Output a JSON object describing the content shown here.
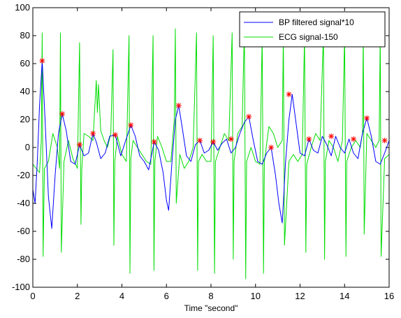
{
  "chart_data": {
    "type": "line",
    "title": "",
    "xlabel": "Time \"second\"",
    "ylabel": "",
    "xlim": [
      0,
      16
    ],
    "ylim": [
      -100,
      100
    ],
    "xticks": [
      0,
      2,
      4,
      6,
      8,
      10,
      12,
      14,
      16
    ],
    "yticks": [
      -100,
      -80,
      -60,
      -40,
      -20,
      0,
      20,
      40,
      60,
      80,
      100
    ],
    "grid": false,
    "legend_position": "top-right",
    "series": [
      {
        "name": "BP filtered signal*10",
        "color": "#0000ff",
        "x": [
          0,
          0.1,
          0.2,
          0.3,
          0.42,
          0.55,
          0.7,
          0.85,
          1.0,
          1.15,
          1.32,
          1.5,
          1.7,
          1.9,
          2.1,
          2.3,
          2.5,
          2.7,
          2.85,
          3.05,
          3.25,
          3.45,
          3.7,
          3.95,
          4.15,
          4.4,
          4.6,
          4.8,
          5.0,
          5.2,
          5.45,
          5.65,
          5.85,
          6.0,
          6.1,
          6.25,
          6.4,
          6.55,
          6.7,
          6.9,
          7.1,
          7.3,
          7.5,
          7.7,
          7.9,
          8.1,
          8.3,
          8.5,
          8.7,
          8.9,
          9.1,
          9.3,
          9.5,
          9.7,
          9.9,
          10.1,
          10.3,
          10.5,
          10.7,
          10.9,
          11.05,
          11.2,
          11.35,
          11.5,
          11.65,
          11.8,
          12.0,
          12.2,
          12.4,
          12.6,
          12.8,
          13.0,
          13.2,
          13.4,
          13.6,
          13.8,
          14.0,
          14.2,
          14.4,
          14.6,
          14.8,
          15.0,
          15.2,
          15.4,
          15.6,
          15.8,
          16.0
        ],
        "values": [
          -30,
          -40,
          -10,
          30,
          62,
          20,
          -35,
          -58,
          -20,
          10,
          24,
          12,
          -10,
          -12,
          2,
          -6,
          -4,
          10,
          4,
          -8,
          -4,
          8,
          9,
          -6,
          4,
          16,
          8,
          -6,
          -10,
          -16,
          4,
          -2,
          -18,
          -38,
          -45,
          -10,
          20,
          30,
          15,
          -6,
          -10,
          2,
          5,
          -4,
          -2,
          4,
          -2,
          3,
          6,
          -4,
          0,
          10,
          18,
          22,
          5,
          -10,
          -12,
          -4,
          0,
          -20,
          -40,
          -54,
          -10,
          20,
          38,
          20,
          -4,
          -6,
          6,
          -2,
          -4,
          8,
          2,
          -6,
          8,
          0,
          -4,
          6,
          -4,
          -8,
          10,
          21,
          8,
          -10,
          -12,
          -4,
          5
        ]
      },
      {
        "name": "ECG signal-150",
        "color": "#00dd00",
        "x": [
          0,
          0.15,
          0.3,
          0.38,
          0.42,
          0.46,
          0.52,
          0.7,
          0.9,
          1.1,
          1.2,
          1.24,
          1.28,
          1.4,
          1.6,
          1.8,
          2.0,
          2.1,
          2.16,
          2.2,
          2.3,
          2.5,
          2.7,
          2.85,
          2.9,
          2.95,
          3.05,
          3.2,
          3.35,
          3.5,
          3.6,
          3.64,
          3.68,
          3.8,
          4.0,
          4.2,
          4.32,
          4.36,
          4.4,
          4.5,
          4.7,
          4.9,
          5.1,
          5.3,
          5.4,
          5.44,
          5.48,
          5.6,
          5.8,
          6.0,
          6.2,
          6.35,
          6.4,
          6.44,
          6.6,
          6.8,
          7.0,
          7.2,
          7.35,
          7.4,
          7.44,
          7.6,
          7.8,
          8.0,
          8.1,
          8.16,
          8.2,
          8.4,
          8.6,
          8.8,
          8.95,
          9.0,
          9.04,
          9.2,
          9.4,
          9.5,
          9.56,
          9.6,
          9.8,
          10.0,
          10.2,
          10.3,
          10.36,
          10.4,
          10.6,
          10.8,
          11.0,
          11.2,
          11.25,
          11.3,
          11.5,
          11.7,
          11.9,
          12.1,
          12.2,
          12.26,
          12.3,
          12.5,
          12.7,
          12.9,
          13.05,
          13.1,
          13.14,
          13.3,
          13.5,
          13.7,
          13.9,
          14.0,
          14.06,
          14.1,
          14.3,
          14.5,
          14.7,
          14.8,
          14.84,
          14.88,
          15.0,
          15.2,
          15.4,
          15.55,
          15.6,
          15.64,
          15.8,
          16.0
        ],
        "values": [
          -12,
          -15,
          -18,
          5,
          82,
          -78,
          -15,
          -10,
          10,
          0,
          -15,
          82,
          -75,
          -10,
          5,
          -8,
          -15,
          75,
          -55,
          -15,
          10,
          8,
          5,
          48,
          25,
          45,
          12,
          5,
          0,
          10,
          70,
          -70,
          -10,
          8,
          -5,
          -10,
          80,
          -90,
          -8,
          5,
          0,
          -5,
          -10,
          -12,
          80,
          -88,
          -10,
          8,
          0,
          -10,
          -10,
          20,
          85,
          -40,
          -5,
          -15,
          -10,
          0,
          82,
          -88,
          -10,
          -5,
          -10,
          -10,
          80,
          -90,
          -10,
          0,
          10,
          5,
          82,
          -80,
          -10,
          10,
          15,
          85,
          -94,
          -10,
          0,
          -10,
          -12,
          80,
          -90,
          -10,
          15,
          10,
          0,
          5,
          82,
          -70,
          -10,
          -5,
          -10,
          -5,
          80,
          -75,
          -12,
          0,
          10,
          5,
          82,
          -80,
          -10,
          5,
          0,
          -10,
          5,
          80,
          -78,
          -10,
          0,
          5,
          0,
          10,
          82,
          -62,
          10,
          5,
          0,
          5,
          82,
          -78,
          -8,
          -5
        ]
      }
    ],
    "peak_markers": {
      "color": "#ff0000",
      "symbol": "*",
      "x": [
        0.42,
        1.32,
        2.1,
        2.7,
        3.7,
        4.4,
        5.45,
        6.55,
        7.5,
        8.1,
        8.9,
        9.7,
        10.7,
        11.5,
        12.4,
        13.4,
        14.4,
        15.0,
        15.8
      ],
      "values": [
        62,
        24,
        2,
        10,
        9,
        16,
        4,
        30,
        5,
        4,
        6,
        22,
        0,
        38,
        6,
        8,
        6,
        21,
        5
      ]
    }
  }
}
